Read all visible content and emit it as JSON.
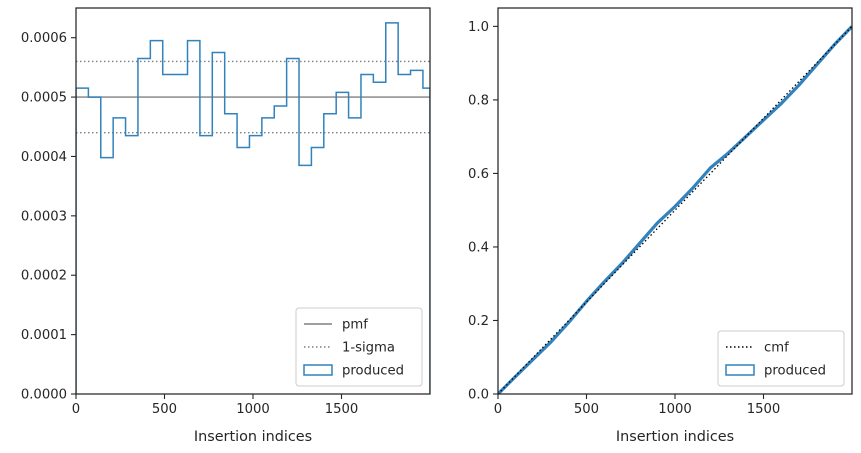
{
  "chart_data": [
    {
      "type": "histogram-step",
      "xlabel": "Insertion indices",
      "ylabel": "",
      "xlim": [
        0,
        2000
      ],
      "ylim": [
        0,
        0.00065
      ],
      "x_ticks": [
        0,
        500,
        1000,
        1500
      ],
      "x_tick_labels": [
        "0",
        "500",
        "1000",
        "1500"
      ],
      "y_ticks": [
        0,
        0.0001,
        0.0002,
        0.0003,
        0.0004,
        0.0005,
        0.0006
      ],
      "y_tick_labels": [
        "0.0000",
        "0.0001",
        "0.0002",
        "0.0003",
        "0.0004",
        "0.0005",
        "0.0006"
      ],
      "grid": false,
      "legend": {
        "placement": "lower right",
        "entries": [
          "pmf",
          "1-sigma",
          "produced"
        ]
      },
      "pmf": 0.0005,
      "sigma_band": [
        0.00044,
        0.00056
      ],
      "produced": {
        "name": "produced",
        "bin_edges": [
          0,
          70,
          140,
          210,
          280,
          350,
          420,
          490,
          560,
          630,
          700,
          770,
          840,
          910,
          980,
          1050,
          1120,
          1190,
          1260,
          1330,
          1400,
          1470,
          1540,
          1610,
          1680,
          1750,
          1820,
          1890,
          1960,
          2000
        ],
        "values": [
          0.000515,
          0.0005,
          0.000398,
          0.000465,
          0.000435,
          0.000565,
          0.000595,
          0.000538,
          0.000538,
          0.000595,
          0.000435,
          0.000575,
          0.000472,
          0.000415,
          0.000435,
          0.000465,
          0.000485,
          0.000565,
          0.000385,
          0.000415,
          0.000472,
          0.000508,
          0.000465,
          0.000538,
          0.000525,
          0.000625,
          0.000538,
          0.000545,
          0.000515
        ]
      },
      "colors": {
        "produced": "#3182bd",
        "pmf": "#808080",
        "sigma": "#808080"
      }
    },
    {
      "type": "line-step",
      "xlabel": "Insertion indices",
      "ylabel": "",
      "xlim": [
        0,
        2000
      ],
      "ylim": [
        0,
        1.05
      ],
      "x_ticks": [
        0,
        500,
        1000,
        1500
      ],
      "x_tick_labels": [
        "0",
        "500",
        "1000",
        "1500"
      ],
      "y_ticks": [
        0,
        0.2,
        0.4,
        0.6,
        0.8,
        1.0
      ],
      "y_tick_labels": [
        "0.0",
        "0.2",
        "0.4",
        "0.6",
        "0.8",
        "1.0"
      ],
      "grid": false,
      "legend": {
        "placement": "lower right",
        "entries": [
          "cmf",
          "produced"
        ]
      },
      "cmf": {
        "name": "cmf",
        "x": [
          0,
          2000
        ],
        "y": [
          0,
          1.0
        ]
      },
      "produced": {
        "name": "produced",
        "x": [
          0,
          100,
          200,
          300,
          400,
          500,
          600,
          700,
          800,
          900,
          1000,
          1100,
          1200,
          1300,
          1400,
          1500,
          1600,
          1700,
          1800,
          1900,
          2000
        ],
        "y": [
          0,
          0.048,
          0.095,
          0.142,
          0.195,
          0.252,
          0.305,
          0.355,
          0.41,
          0.465,
          0.51,
          0.56,
          0.615,
          0.655,
          0.7,
          0.745,
          0.79,
          0.84,
          0.895,
          0.95,
          1.0
        ]
      },
      "colors": {
        "produced": "#3182bd",
        "cmf": "#000000"
      }
    }
  ]
}
